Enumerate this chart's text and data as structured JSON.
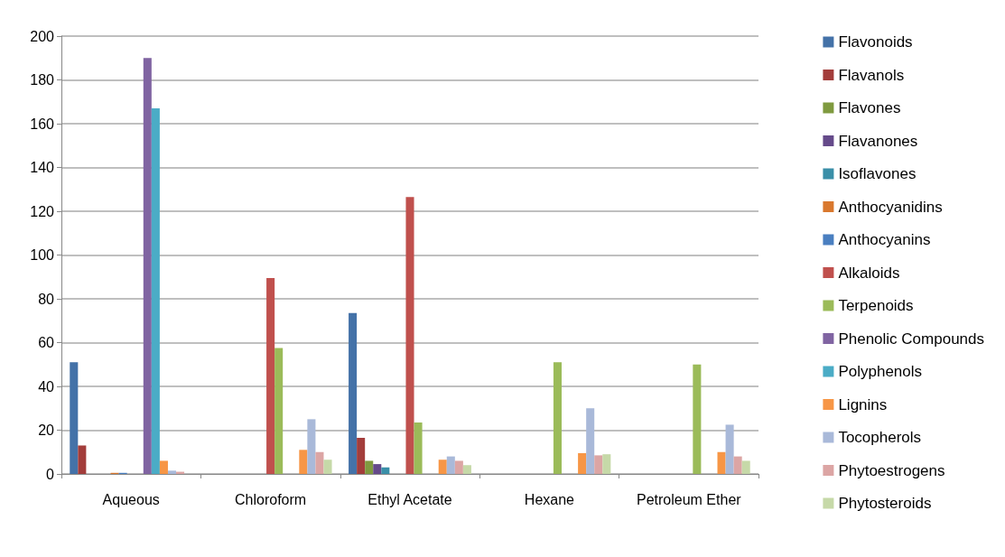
{
  "chart_data": {
    "type": "bar",
    "categories": [
      "Aqueous",
      "Chloroform",
      "Ethyl Acetate",
      "Hexane",
      "Petroleum Ether"
    ],
    "series": [
      {
        "name": "Flavonoids",
        "color": "#4472a8",
        "values": [
          51,
          0,
          73.5,
          0,
          0
        ]
      },
      {
        "name": "Flavanols",
        "color": "#a33d3b",
        "values": [
          13,
          0,
          16.5,
          0,
          0
        ]
      },
      {
        "name": "Flavones",
        "color": "#7f9a3f",
        "values": [
          0,
          0,
          6,
          0,
          0
        ]
      },
      {
        "name": "Flavanones",
        "color": "#654a8a",
        "values": [
          0,
          0,
          4.5,
          0,
          0
        ]
      },
      {
        "name": "Isoflavones",
        "color": "#3a8fa8",
        "values": [
          0,
          0,
          3,
          0,
          0
        ]
      },
      {
        "name": "Anthocyanidins",
        "color": "#d9782e",
        "values": [
          0.5,
          0,
          0,
          0,
          0
        ]
      },
      {
        "name": "Anthocyanins",
        "color": "#4a7fc0",
        "values": [
          0.5,
          0,
          0,
          0,
          0
        ]
      },
      {
        "name": "Alkaloids",
        "color": "#c0504d",
        "values": [
          0,
          89.5,
          126.5,
          0,
          0
        ]
      },
      {
        "name": "Terpenoids",
        "color": "#9bbb59",
        "values": [
          0,
          57.5,
          23.5,
          51,
          50
        ]
      },
      {
        "name": "Phenolic Compounds",
        "color": "#8064a2",
        "values": [
          190,
          0,
          0,
          0,
          0
        ]
      },
      {
        "name": "Polyphenols",
        "color": "#4bacc6",
        "values": [
          167,
          0,
          0,
          0,
          0
        ]
      },
      {
        "name": "Lignins",
        "color": "#f79646",
        "values": [
          6,
          11,
          6.5,
          9.5,
          10
        ]
      },
      {
        "name": "Tocopherols",
        "color": "#a9b9d9",
        "values": [
          1.5,
          25,
          8,
          30,
          22.5
        ]
      },
      {
        "name": "Phytoestrogens",
        "color": "#dca5a4",
        "values": [
          1,
          10,
          6,
          8.5,
          8
        ]
      },
      {
        "name": "Phytosteroids",
        "color": "#c6d9a8",
        "values": [
          0,
          6.5,
          4,
          9,
          6
        ]
      }
    ],
    "ylim": [
      0,
      200
    ],
    "yticks": [
      0,
      20,
      40,
      60,
      80,
      100,
      120,
      140,
      160,
      180,
      200
    ],
    "grid": "y",
    "legend": "right"
  }
}
